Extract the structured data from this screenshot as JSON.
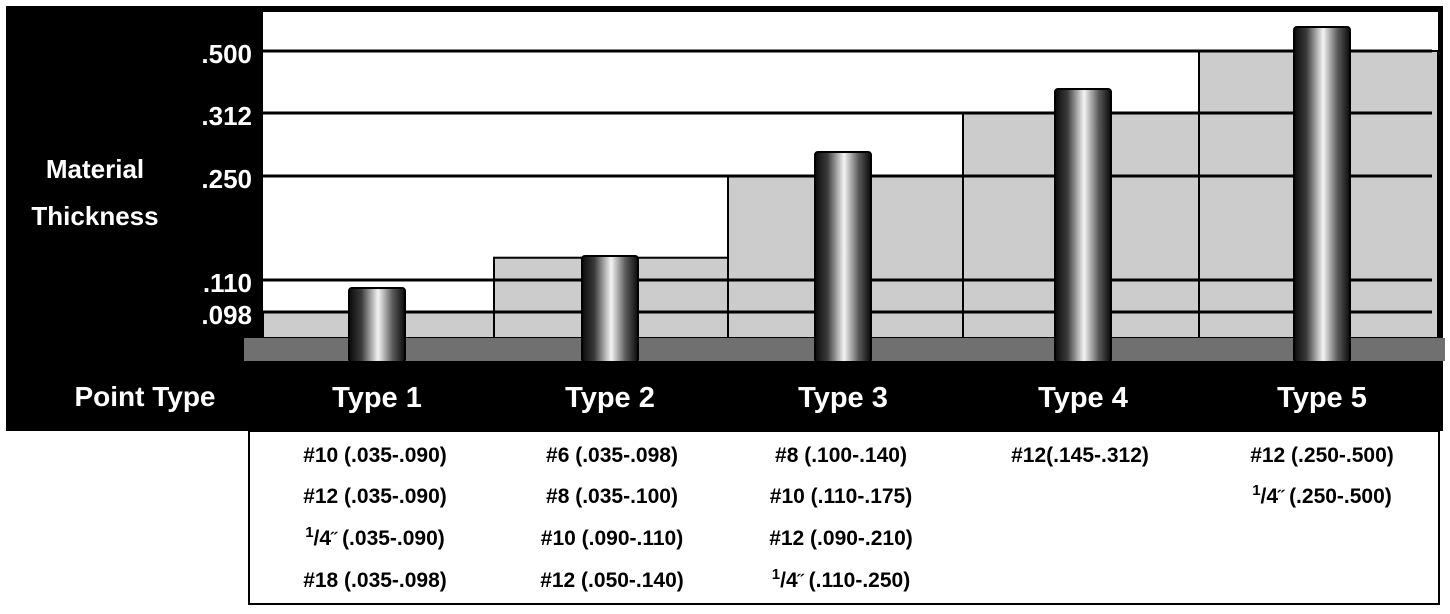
{
  "chart_data": {
    "type": "bar",
    "ylabel": [
      "Material",
      "Thickness"
    ],
    "xlabel": "Point Type",
    "y_ticks": [
      ".500",
      ".312",
      ".250",
      ".110",
      ".098"
    ],
    "y_tick_values": [
      0.5,
      0.312,
      0.25,
      0.11,
      0.098
    ],
    "categories": [
      "Type 1",
      "Type 2",
      "Type 3",
      "Type 4",
      "Type 5"
    ],
    "values": [
      0.098,
      0.11,
      0.25,
      0.312,
      0.5
    ],
    "band_ranges": [
      [
        0.035,
        0.098
      ],
      [
        0.035,
        0.14
      ],
      [
        0.09,
        0.25
      ],
      [
        0.145,
        0.312
      ],
      [
        0.25,
        0.5
      ]
    ],
    "sizes": [
      [
        {
          "main": "#10 (.035-.090)"
        },
        {
          "main": "#12 (.035-.090)"
        },
        {
          "sup": "1",
          "frac": "/4",
          "mark": "˝",
          "main": "(.035-.090)"
        },
        {
          "main": "#18 (.035-.098)"
        }
      ],
      [
        {
          "main": "#6 (.035-.098)"
        },
        {
          "main": "#8 (.035-.100)"
        },
        {
          "main": "#10 (.090-.110)"
        },
        {
          "main": "#12 (.050-.140)"
        }
      ],
      [
        {
          "main": "#8 (.100-.140)"
        },
        {
          "main": "#10 (.110-.175)"
        },
        {
          "main": "#12 (.090-.210)"
        },
        {
          "sup": "1",
          "frac": "/4",
          "mark": "˝",
          "main": "(.110-.250)"
        }
      ],
      [
        {
          "main": "#12(.145-.312)"
        }
      ],
      [
        {
          "main": "#12 (.250-.500)"
        },
        {
          "sup": "1",
          "frac": "/4",
          "mark": "˝",
          "main": "(.250-.500)"
        }
      ]
    ],
    "colors": {
      "background": "#000000",
      "plot": "#ffffff",
      "band": "#cccccc",
      "baseline": "#707070",
      "bar_dark": "#111111",
      "bar_light": "#f2f2f2"
    },
    "grid": true
  }
}
